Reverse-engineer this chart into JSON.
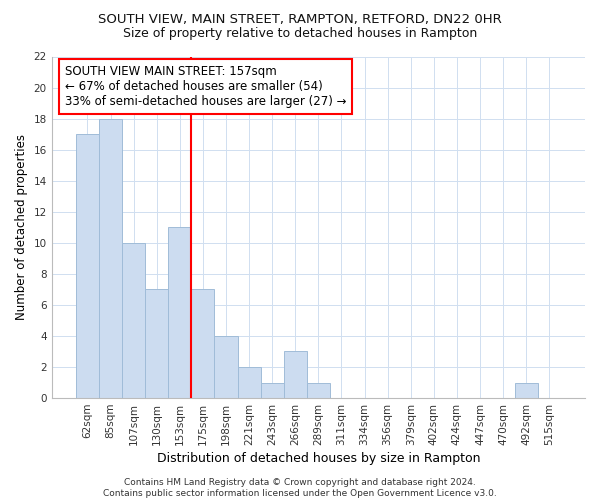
{
  "title": "SOUTH VIEW, MAIN STREET, RAMPTON, RETFORD, DN22 0HR",
  "subtitle": "Size of property relative to detached houses in Rampton",
  "xlabel": "Distribution of detached houses by size in Rampton",
  "ylabel": "Number of detached properties",
  "categories": [
    "62sqm",
    "85sqm",
    "107sqm",
    "130sqm",
    "153sqm",
    "175sqm",
    "198sqm",
    "221sqm",
    "243sqm",
    "266sqm",
    "289sqm",
    "311sqm",
    "334sqm",
    "356sqm",
    "379sqm",
    "402sqm",
    "424sqm",
    "447sqm",
    "470sqm",
    "492sqm",
    "515sqm"
  ],
  "values": [
    17,
    18,
    10,
    7,
    11,
    7,
    4,
    2,
    1,
    3,
    1,
    0,
    0,
    0,
    0,
    0,
    0,
    0,
    0,
    1,
    0
  ],
  "bar_color": "#ccdcf0",
  "bar_edge_color": "#a0bcd8",
  "grid_color": "#d0dff0",
  "background_color": "#ffffff",
  "red_line_x": 4.5,
  "annotation_text": "SOUTH VIEW MAIN STREET: 157sqm\n← 67% of detached houses are smaller (54)\n33% of semi-detached houses are larger (27) →",
  "annotation_box_color": "white",
  "annotation_box_edge_color": "red",
  "ylim": [
    0,
    22
  ],
  "yticks": [
    0,
    2,
    4,
    6,
    8,
    10,
    12,
    14,
    16,
    18,
    20,
    22
  ],
  "footer": "Contains HM Land Registry data © Crown copyright and database right 2024.\nContains public sector information licensed under the Open Government Licence v3.0.",
  "title_fontsize": 9.5,
  "subtitle_fontsize": 9,
  "xlabel_fontsize": 9,
  "ylabel_fontsize": 8.5,
  "tick_fontsize": 7.5,
  "annotation_fontsize": 8.5
}
